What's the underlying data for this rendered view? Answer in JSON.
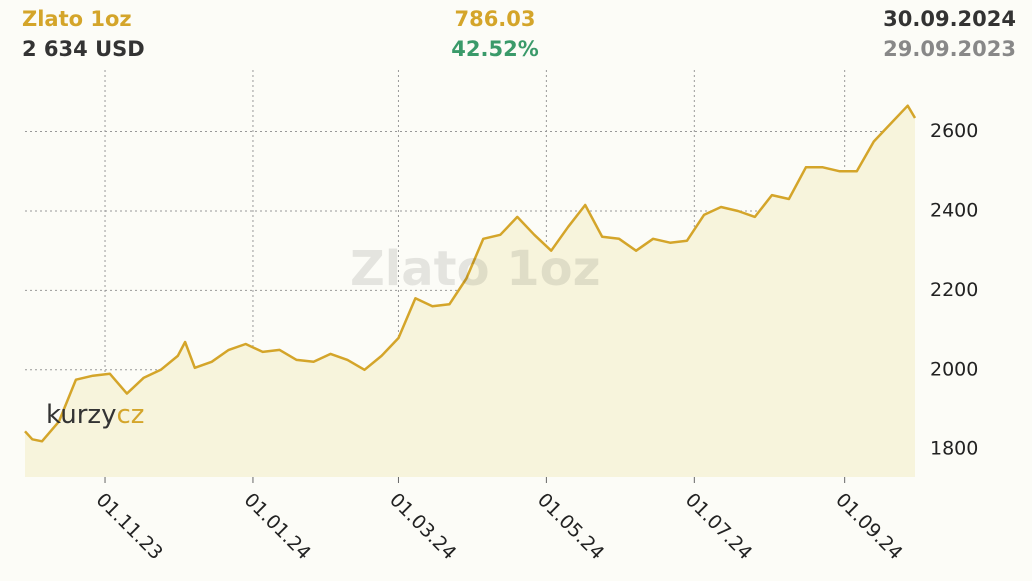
{
  "header": {
    "name": "Zlato 1oz",
    "price": "2 634 USD",
    "change": "786.03",
    "change_pct": "42.52%",
    "date_end": "30.09.2024",
    "date_start": "29.09.2023"
  },
  "watermark": "Zlato 1oz",
  "logo": {
    "part1": "kurzy",
    "part2": "cz"
  },
  "chart_data": {
    "type": "line",
    "x": [
      "29.09.23",
      "02.10.23",
      "06.10.23",
      "13.10.23",
      "20.10.23",
      "27.10.23",
      "03.11.23",
      "10.11.23",
      "17.11.23",
      "24.11.23",
      "01.12.23",
      "04.12.23",
      "08.12.23",
      "15.12.23",
      "22.12.23",
      "29.12.23",
      "05.01.24",
      "12.01.24",
      "19.01.24",
      "26.01.24",
      "02.02.24",
      "09.02.24",
      "16.02.24",
      "23.02.24",
      "01.03.24",
      "08.03.24",
      "15.03.24",
      "22.03.24",
      "29.03.24",
      "05.04.24",
      "12.04.24",
      "19.04.24",
      "26.04.24",
      "03.05.24",
      "10.05.24",
      "17.05.24",
      "24.05.24",
      "31.05.24",
      "07.06.24",
      "14.06.24",
      "21.06.24",
      "28.06.24",
      "05.07.24",
      "12.07.24",
      "19.07.24",
      "26.07.24",
      "02.08.24",
      "09.08.24",
      "16.08.24",
      "23.08.24",
      "30.08.24",
      "06.09.24",
      "13.09.24",
      "20.09.24",
      "27.09.24",
      "30.09.24"
    ],
    "series": [
      {
        "name": "Zlato 1oz",
        "color": "#d4a52a",
        "values": [
          1845,
          1825,
          1820,
          1870,
          1975,
          1985,
          1990,
          1940,
          1980,
          2000,
          2035,
          2070,
          2005,
          2020,
          2050,
          2065,
          2045,
          2050,
          2025,
          2020,
          2040,
          2025,
          2000,
          2035,
          2080,
          2180,
          2160,
          2165,
          2230,
          2330,
          2340,
          2385,
          2340,
          2300,
          2360,
          2415,
          2335,
          2330,
          2300,
          2330,
          2320,
          2325,
          2390,
          2410,
          2400,
          2385,
          2440,
          2430,
          2510,
          2510,
          2500,
          2500,
          2575,
          2620,
          2665,
          2634
        ]
      }
    ],
    "xlim": [
      "29.09.23",
      "30.09.24"
    ],
    "xticks": [
      "01.11.23",
      "01.01.24",
      "01.03.24",
      "01.05.24",
      "01.07.24",
      "01.09.24"
    ],
    "ylim": [
      1730,
      2755
    ],
    "yticks": [
      1800,
      2000,
      2200,
      2400,
      2600
    ],
    "grid": true,
    "area_fill": "#f7f4dc"
  }
}
